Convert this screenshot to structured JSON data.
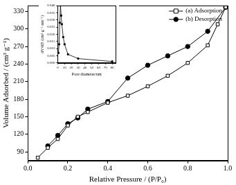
{
  "chart_data": [
    {
      "type": "line",
      "x_label": "Relative Pressure / (P/P₀)",
      "y_label": "Volume Adsorbed / (cm³ g⁻¹)",
      "xlim": [
        0,
        1
      ],
      "xticks": [
        {
          "value": 0,
          "label": "0.0"
        },
        0.2,
        0.4,
        0.6,
        0.8,
        {
          "value": 1,
          "label": "1.0"
        }
      ],
      "ylim": [
        75,
        340
      ],
      "yticks": [
        90,
        120,
        150,
        180,
        210,
        240,
        270,
        300,
        330
      ],
      "grid": false,
      "legend": "top-right",
      "series": [
        {
          "name": "(a) Adsorption",
          "color": "#000000",
          "marker": "open-square",
          "x": [
            0.05,
            0.1,
            0.15,
            0.2,
            0.25,
            0.3,
            0.4,
            0.5,
            0.6,
            0.7,
            0.8,
            0.9,
            0.95,
            0.99
          ],
          "values": [
            80,
            97,
            112,
            135,
            150,
            158,
            174,
            186,
            202,
            220,
            242,
            272,
            308,
            337
          ]
        },
        {
          "name": "(b) Desorption",
          "color": "#000000",
          "marker": "filled-circle",
          "x": [
            0.1,
            0.15,
            0.2,
            0.25,
            0.3,
            0.4,
            0.5,
            0.6,
            0.7,
            0.8,
            0.9,
            0.99
          ],
          "values": [
            100,
            118,
            138,
            148,
            163,
            176,
            216,
            238,
            254,
            270,
            296,
            337
          ]
        }
      ]
    },
    {
      "type": "line",
      "x_label": "Pore diameter/nm",
      "y_label": "dV/dD (cm³ g⁻¹ nm⁻¹)",
      "xlim": [
        0,
        85
      ],
      "xticks": [
        0,
        10,
        20,
        30,
        40,
        50,
        60,
        70,
        80
      ],
      "ylim": [
        0,
        0.04
      ],
      "yticks": [
        {
          "value": 0,
          "label": "0.000"
        },
        0.005,
        {
          "value": 0.01,
          "label": "0.010"
        },
        0.015,
        {
          "value": 0.02,
          "label": "0.020"
        },
        0.025,
        {
          "value": 0.03,
          "label": "0.030"
        },
        0.035,
        {
          "value": 0.04,
          "label": "0.040"
        }
      ],
      "grid": false,
      "series": [
        {
          "color": "#000000",
          "marker": "filled-square",
          "x": [
            1,
            2,
            3,
            4,
            5,
            6,
            8,
            10,
            15,
            30,
            80
          ],
          "values": [
            0.007,
            0.013,
            0.028,
            0.04,
            0.033,
            0.027,
            0.018,
            0.013,
            0.006,
            0.003,
            0.001
          ]
        }
      ]
    }
  ]
}
